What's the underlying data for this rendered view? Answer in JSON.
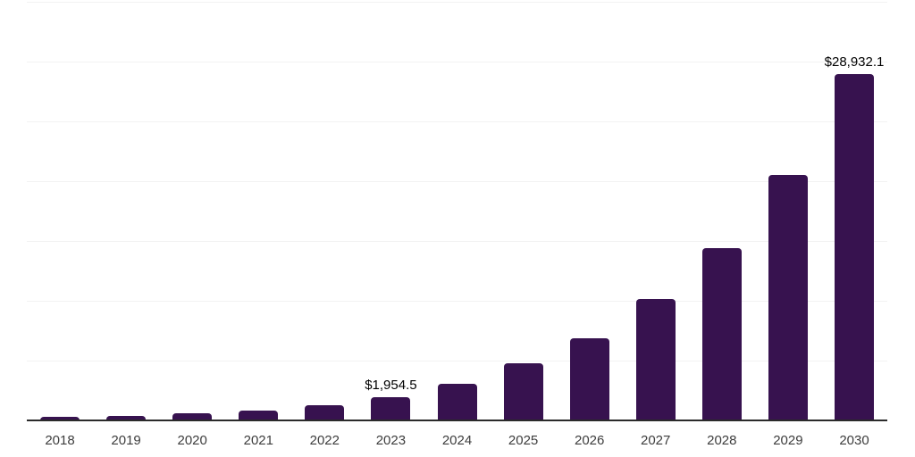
{
  "chart_data": {
    "type": "bar",
    "title": "",
    "xlabel": "",
    "ylabel": "",
    "categories": [
      "2018",
      "2019",
      "2020",
      "2021",
      "2022",
      "2023",
      "2024",
      "2025",
      "2026",
      "2027",
      "2028",
      "2029",
      "2030"
    ],
    "values": [
      280,
      390,
      620,
      840,
      1300,
      1954.5,
      3100,
      4750,
      6850,
      10150,
      14400,
      20500,
      28932.1
    ],
    "value_labels": [
      "",
      "",
      "",
      "",
      "",
      "$1,954.5",
      "",
      "",
      "",
      "",
      "",
      "",
      "$28,932.1"
    ],
    "labeled_points": [
      {
        "category": "2023",
        "label": "$1,954.5",
        "value": 1954.5
      },
      {
        "category": "2030",
        "label": "$28,932.1",
        "value": 28932.1
      }
    ],
    "ylim": [
      0,
      35000
    ],
    "grid_step": 5000,
    "grid": true,
    "y_tick_labels_visible": false,
    "legend": false,
    "colors": {
      "bar": "#37124f",
      "axis": "#2b2b2b",
      "gridline": "#f2f2f2",
      "tick_label": "#3d3d3d",
      "value_label": "#000000",
      "background": "#ffffff"
    }
  }
}
